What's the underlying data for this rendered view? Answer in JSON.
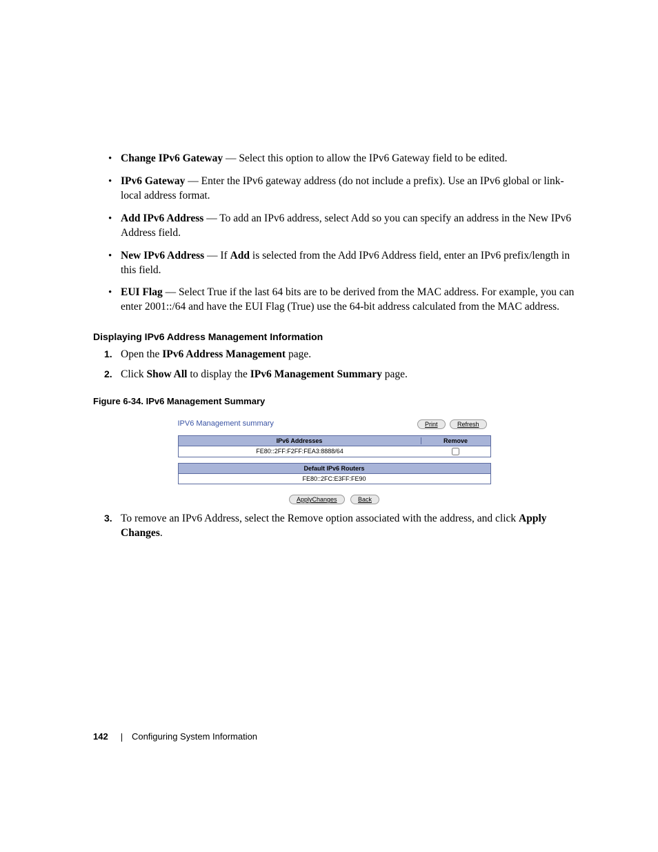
{
  "bullets": [
    {
      "term": "Change IPv6 Gateway",
      "text": " — Select this option to allow the IPv6 Gateway field to be edited."
    },
    {
      "term": "IPv6 Gateway",
      "text": " — Enter the IPv6 gateway address (do not include a prefix). Use an IPv6 global or link-local address format."
    },
    {
      "term": "Add IPv6 Address",
      "text": " — To add an IPv6 address, select Add so you can specify an address in the New IPv6 Address field."
    },
    {
      "term": "New IPv6 Address",
      "text_before": " — If ",
      "bold_inline": "Add",
      "text_after": " is selected from the Add IPv6 Address field, enter an IPv6 prefix/length in this field."
    },
    {
      "term": "EUI Flag",
      "text": " — Select True if the last 64 bits are to be derived from the MAC address. For example, you can enter 2001::/64 and have the EUI Flag (True) use the 64-bit address calculated from the MAC address."
    }
  ],
  "subhead": "Displaying IPv6 Address Management Information",
  "steps": {
    "s1_num": "1.",
    "s1_a": "Open the ",
    "s1_b": "IPv6 Address Management",
    "s1_c": " page.",
    "s2_num": "2.",
    "s2_a": "Click ",
    "s2_b": "Show All",
    "s2_c": " to display the ",
    "s2_d": "IPv6 Management Summary",
    "s2_e": " page.",
    "s3_num": "3.",
    "s3_a": "To remove an IPv6 Address, select the Remove option associated with the address, and click ",
    "s3_b": "Apply Changes",
    "s3_c": "."
  },
  "fig_caption": "Figure 6-34.    IPv6 Management Summary",
  "shot": {
    "title": "IPV6 Management summary",
    "btn_print": "Print",
    "btn_refresh": "Refresh",
    "addr_header": "IPv6 Addresses",
    "remove_header": "Remove",
    "addr_row": "FE80::2FF:F2FF:FEA3:8888/64",
    "router_header": "Default IPv6 Routers",
    "router_row": "FE80::2FC:E3FF:FE90",
    "btn_apply": "ApplyChanges",
    "btn_back": "Back"
  },
  "footer": {
    "page_no": "142",
    "section": "Configuring System Information"
  }
}
